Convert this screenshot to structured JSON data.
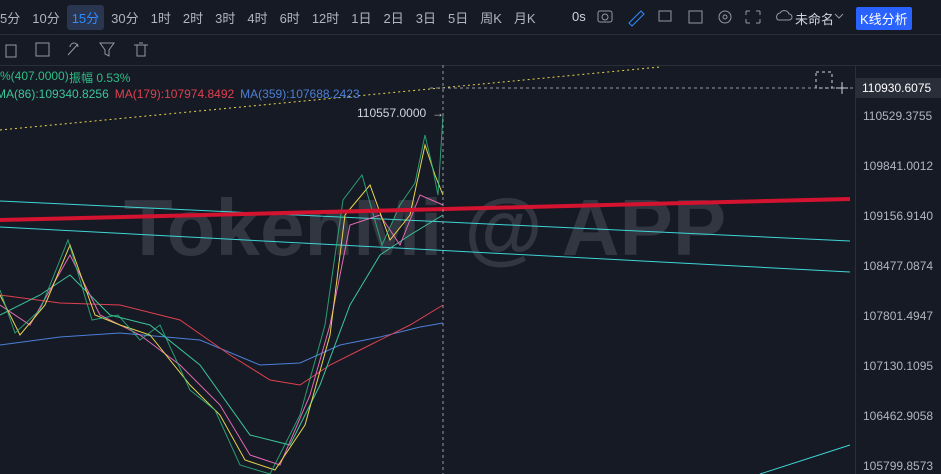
{
  "toolbar": {
    "intervals": [
      "5分",
      "10分",
      "15分",
      "30分",
      "1时",
      "2时",
      "3时",
      "4时",
      "6时",
      "12时",
      "1日",
      "2日",
      "3日",
      "5日",
      "周K",
      "月K"
    ],
    "active_interval": "15分",
    "countdown": "0s",
    "layout_name": "未命名",
    "analysis_button": "K线分析"
  },
  "indicators": {
    "change": "%(407.0000)",
    "amplitude": "振幅 0.53%",
    "ma": [
      {
        "label": "MA(86):109340.8256",
        "color": "#3cc59a"
      },
      {
        "label": "MA(179):107974.8492",
        "color": "#e0404f"
      },
      {
        "label": "MA(359):107688.2423",
        "color": "#4d7fd6"
      }
    ]
  },
  "price_axis": {
    "labels": [
      "110529.3755",
      "109841.0012",
      "109156.9140",
      "108477.0874",
      "107801.4947",
      "107130.1095",
      "106462.9058",
      "105799.8573"
    ],
    "crosshair_price": "110930.6075"
  },
  "high_marker": "110557.0000",
  "watermark": "TokenMi @ APP"
}
